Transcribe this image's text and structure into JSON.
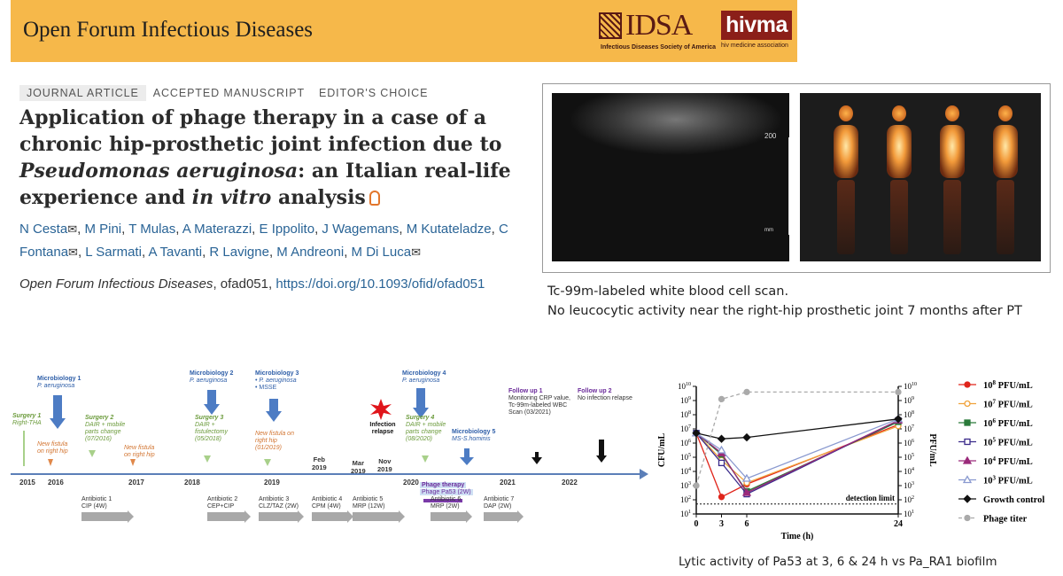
{
  "header": {
    "journal_name": "Open Forum Infectious Diseases",
    "idsa_logo_text": "IDSA",
    "idsa_tagline": "Infectious Diseases Society of America",
    "hivma_logo_text": "hivma",
    "hivma_tagline": "hiv medicine association",
    "band_color": "#f6b84a"
  },
  "article": {
    "tags": [
      "JOURNAL ARTICLE",
      "ACCEPTED MANUSCRIPT",
      "EDITOR'S CHOICE"
    ],
    "title_part1": "Application of phage therapy in a case of a chronic hip-prosthetic joint infection due to ",
    "title_italic1": "Pseudomonas aeruginosa",
    "title_part2": ": an Italian real-life experience and ",
    "title_italic2": "in vitro",
    "title_part3": " analysis",
    "authors": [
      "N Cesta",
      "M Pini",
      "T Mulas",
      "A Materazzi",
      "E Ippolito",
      "J Wagemans",
      "M Kutateladze",
      "C Fontana",
      "L Sarmati",
      "A Tavanti",
      "R Lavigne",
      "M Andreoni",
      "M Di Luca"
    ],
    "authors_with_mail": [
      "N Cesta",
      "C Fontana",
      "M Di Luca"
    ],
    "citation_journal": "Open Forum Infectious Diseases",
    "citation_id": ", ofad051, ",
    "citation_doi": "https://doi.org/10.1093/ofid/ofad051",
    "link_color": "#2a6496"
  },
  "scan": {
    "scale_label": "200",
    "scale_unit": "mm",
    "caption_line1": "Tc-99m-labeled white blood cell scan.",
    "caption_line2": "No leucocytic activity near the right-hip prosthetic joint 7 months after PT"
  },
  "timeline": {
    "years": [
      "2015",
      "2016",
      "2017",
      "2018",
      "2019",
      "2020",
      "2021",
      "2022"
    ],
    "month_marks": [
      {
        "top": "Feb",
        "bottom": "2019"
      },
      {
        "top": "Mar",
        "bottom": "2019"
      },
      {
        "top": "Nov",
        "bottom": "2019"
      }
    ],
    "events": {
      "surgery1_title": "Surgery 1",
      "surgery1_desc": "Right-THA",
      "fistula1": "New fistula on right hip",
      "micro1_title": "Microbiology 1",
      "micro1_desc": "P. aeruginosa",
      "surgery2_title": "Surgery 2",
      "surgery2_desc": "DAIR + mobile parts change (07/2016)",
      "fistula2": "New fistula on right hip",
      "micro2_title": "Microbiology 2",
      "micro2_desc": "P. aeruginosa",
      "surgery3_title": "Surgery 3",
      "surgery3_desc": "DAIR + fistulectomy (05/2018)",
      "micro3_title": "Microbiology 3",
      "micro3_desc1": "• P. aeruginosa",
      "micro3_desc2": "• MSSE",
      "fistula3": "New fistula on right hip (01/2019)",
      "relapse": "Infection relapse",
      "micro4_title": "Microbiology 4",
      "micro4_desc": "P. aeruginosa",
      "surgery4_title": "Surgery 4",
      "surgery4_desc": "DAIR + mobile parts change (08/2020)",
      "micro5_title": "Microbiology 5",
      "micro5_desc": "MS-S.hominis",
      "phage_title": "Phage therapy",
      "phage_desc": "Phage Pa53 (2W)",
      "followup1_title": "Follow up 1",
      "followup1_desc": "Monitoring CRP value, Tc-99m-labeled WBC Scan (03/2021)",
      "followup2_title": "Follow up 2",
      "followup2_desc": "No infection relapse"
    },
    "antibiotics": [
      {
        "name": "Antibiotic 1",
        "drug": "CIP (4W)"
      },
      {
        "name": "Antibiotic 2",
        "drug": "CEP+CIP"
      },
      {
        "name": "Antibiotic 3",
        "drug": "CLZ/TAZ (2W)"
      },
      {
        "name": "Antibiotic 4",
        "drug": "CPM (4W)"
      },
      {
        "name": "Antibiotic 5",
        "drug": "MRP (12W)"
      },
      {
        "name": "Antibiotic 6",
        "drug": "MRP (2W)"
      },
      {
        "name": "Antibiotic 7",
        "drug": "DAP (2W)"
      }
    ]
  },
  "chart_data": {
    "type": "line",
    "title": "",
    "xlabel": "Time (h)",
    "ylabel": "CFU/mL",
    "y2label": "PFU/mL",
    "x": [
      0,
      3,
      6,
      24
    ],
    "x_ticks": [
      "0",
      "3",
      "6",
      "24"
    ],
    "y_scale": "log10",
    "ylim_exp": [
      1,
      10
    ],
    "y_ticks_exp": [
      1,
      2,
      3,
      4,
      5,
      6,
      7,
      8,
      9,
      10
    ],
    "detection_limit_exp": 1.7,
    "detection_limit_label": "detection limit",
    "series": [
      {
        "name": "10^8 PFU/mL",
        "color": "#e0251b",
        "marker": "circle-filled",
        "values_exp": [
          6.7,
          2.2,
          3.1,
          7.3
        ]
      },
      {
        "name": "10^7 PFU/mL",
        "color": "#f0a23a",
        "marker": "circle-open",
        "values_exp": [
          6.7,
          4.8,
          3.2,
          7.2
        ]
      },
      {
        "name": "10^6 PFU/mL",
        "color": "#2a7a3a",
        "marker": "square-filled",
        "values_exp": [
          6.7,
          5.2,
          2.6,
          7.5
        ]
      },
      {
        "name": "10^5 PFU/mL",
        "color": "#3a2a8a",
        "marker": "square-open",
        "values_exp": [
          6.7,
          4.6,
          2.4,
          7.6
        ]
      },
      {
        "name": "10^4 PFU/mL",
        "color": "#9a2a7a",
        "marker": "triangle-filled",
        "values_exp": [
          6.7,
          5.3,
          2.5,
          7.6
        ]
      },
      {
        "name": "10^3 PFU/mL",
        "color": "#8a9ad0",
        "marker": "triangle-open",
        "values_exp": [
          6.7,
          5.5,
          3.5,
          7.7
        ]
      },
      {
        "name": "Growth control",
        "color": "#111111",
        "marker": "diamond-filled",
        "values_exp": [
          6.7,
          6.3,
          6.4,
          7.7
        ]
      },
      {
        "name": "Phage titer",
        "color": "#aaaaaa",
        "marker": "circle-filled",
        "dashed": true,
        "values_exp": [
          3.0,
          9.1,
          9.6,
          9.6
        ]
      }
    ],
    "legend": [
      {
        "base": "10",
        "exp": "8",
        "unit": " PFU/mL"
      },
      {
        "base": "10",
        "exp": "7",
        "unit": " PFU/mL"
      },
      {
        "base": "10",
        "exp": "6",
        "unit": " PFU/mL"
      },
      {
        "base": "10",
        "exp": "5",
        "unit": " PFU/mL"
      },
      {
        "base": "10",
        "exp": "4",
        "unit": " PFU/mL"
      },
      {
        "base": "10",
        "exp": "3",
        "unit": " PFU/mL"
      },
      {
        "base": "Growth control",
        "exp": "",
        "unit": ""
      },
      {
        "base": "Phage titer",
        "exp": "",
        "unit": ""
      }
    ],
    "legend_position": "right",
    "caption": "Lytic activity of Pa53 at 3, 6 & 24 h vs Pa_RA1 biofilm"
  }
}
